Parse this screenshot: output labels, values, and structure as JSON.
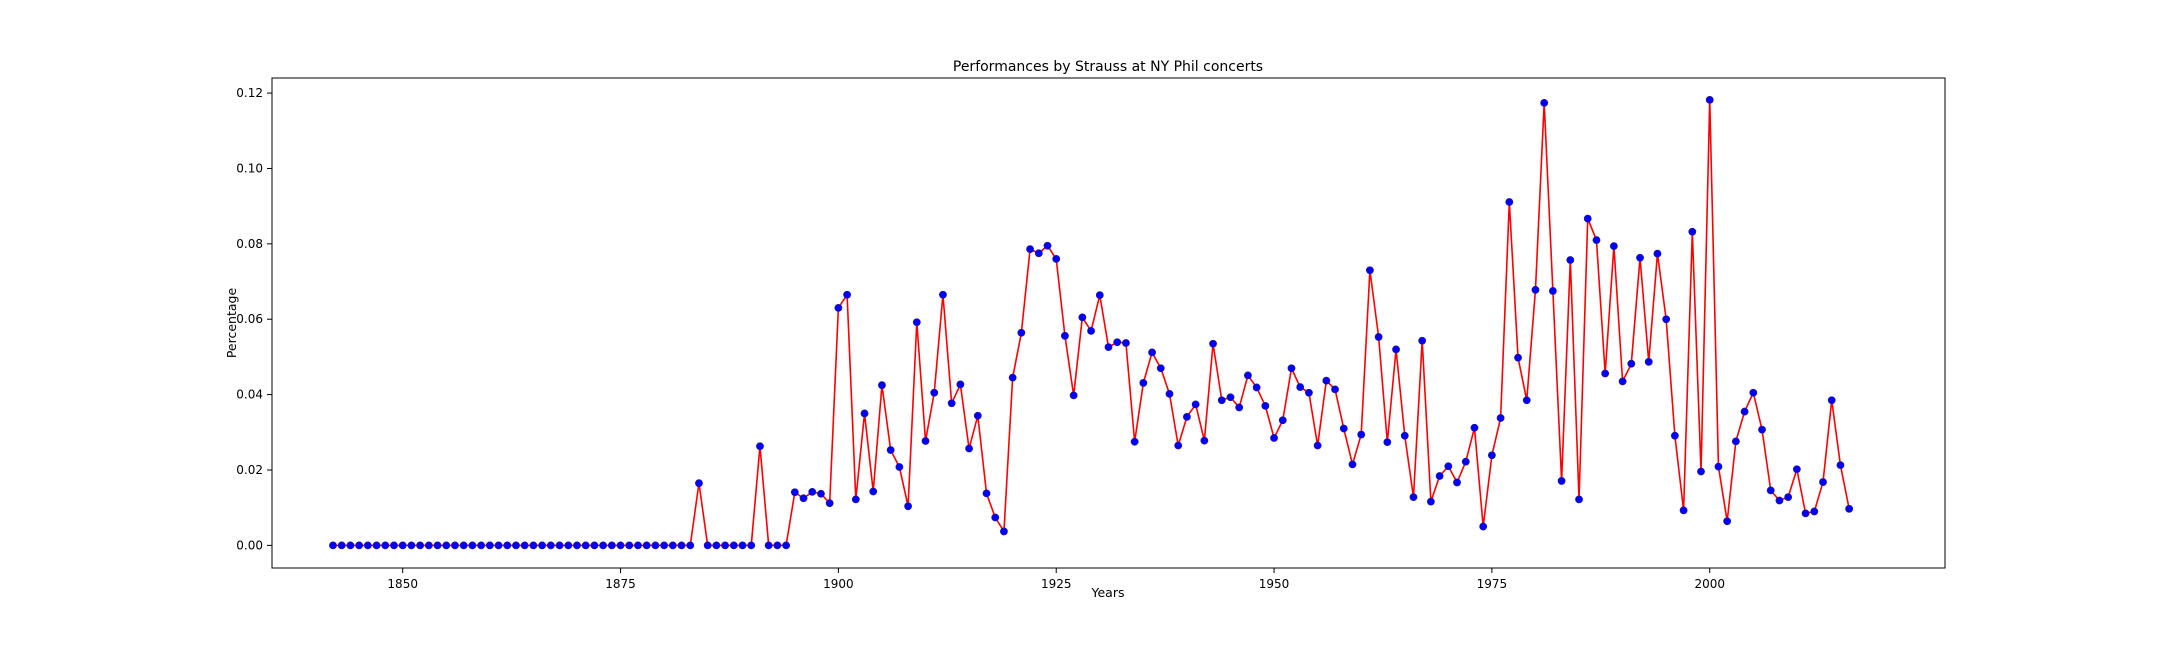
{
  "chart_data": {
    "type": "line",
    "title": "Performances by Strauss at NY Phil concerts",
    "xlabel": "Years",
    "ylabel": "Percentage",
    "xlim": [
      1835,
      2027
    ],
    "ylim": [
      -0.006,
      0.124
    ],
    "xticks": [
      1850,
      1875,
      1900,
      1925,
      1950,
      1975,
      2000
    ],
    "xtick_labels": [
      "1850",
      "1875",
      "1900",
      "1925",
      "1950",
      "1975",
      "2000"
    ],
    "yticks": [
      0.0,
      0.02,
      0.04,
      0.06,
      0.08,
      0.1,
      0.12
    ],
    "ytick_labels": [
      "0.00",
      "0.02",
      "0.04",
      "0.06",
      "0.08",
      "0.10",
      "0.12"
    ],
    "grid": false,
    "legend": "none",
    "line_color": "#ff0000",
    "marker_color": "#0000ff",
    "series": [
      {
        "x": [
          1842,
          1843,
          1844,
          1845,
          1846,
          1847,
          1848,
          1849,
          1850,
          1851,
          1852,
          1853,
          1854,
          1855,
          1856,
          1857,
          1858,
          1859,
          1860,
          1861,
          1862,
          1863,
          1864,
          1865,
          1866,
          1867,
          1868,
          1869,
          1870,
          1871,
          1872,
          1873,
          1874,
          1875,
          1876,
          1877,
          1878,
          1879,
          1880,
          1881,
          1882,
          1883,
          1884,
          1885,
          1886,
          1887,
          1888,
          1889,
          1890,
          1891,
          1892,
          1893,
          1894,
          1895,
          1896,
          1897,
          1898,
          1899,
          1900,
          1901,
          1902,
          1903,
          1904,
          1905,
          1906,
          1907,
          1908,
          1909,
          1910,
          1911,
          1912,
          1913,
          1914,
          1915,
          1916,
          1917,
          1918,
          1919,
          1920,
          1921,
          1922,
          1923,
          1924,
          1925,
          1926,
          1927,
          1928,
          1929,
          1930,
          1931,
          1932,
          1933,
          1934,
          1935,
          1936,
          1937,
          1938,
          1939,
          1940,
          1941,
          1942,
          1943,
          1944,
          1945,
          1946,
          1947,
          1948,
          1949,
          1950,
          1951,
          1952,
          1953,
          1954,
          1955,
          1956,
          1957,
          1958,
          1959,
          1960,
          1961,
          1962,
          1963,
          1964,
          1965,
          1966,
          1967,
          1968,
          1969,
          1970,
          1971,
          1972,
          1973,
          1974,
          1975,
          1976,
          1977,
          1978,
          1979,
          1980,
          1981,
          1982,
          1983,
          1984,
          1985,
          1986,
          1987,
          1988,
          1989,
          1990,
          1991,
          1992,
          1993,
          1994,
          1995,
          1996,
          1997,
          1998,
          1999,
          2000,
          2001,
          2002,
          2003,
          2004,
          2005,
          2006,
          2007,
          2008,
          2009,
          2010,
          2011,
          2012,
          2013,
          2014,
          2015,
          2016
        ],
        "y": [
          0,
          0,
          0,
          0,
          0,
          0,
          0,
          0,
          0,
          0,
          0,
          0,
          0,
          0,
          0,
          0,
          0,
          0,
          0,
          0,
          0,
          0,
          0,
          0,
          0,
          0,
          0,
          0,
          0,
          0,
          0,
          0,
          0,
          0,
          0,
          0,
          0,
          0,
          0,
          0,
          0,
          0,
          0.0165,
          0,
          0,
          0,
          0,
          0,
          0,
          0.0263,
          0,
          0,
          0,
          0.0141,
          0.0125,
          0.0142,
          0.0137,
          0.0112,
          0.063,
          0.0665,
          0.0122,
          0.035,
          0.0143,
          0.0425,
          0.0253,
          0.0208,
          0.0104,
          0.0592,
          0.0277,
          0.0405,
          0.0665,
          0.0377,
          0.0427,
          0.0257,
          0.0344,
          0.0138,
          0.0074,
          0.0037,
          0.0445,
          0.0564,
          0.0786,
          0.0775,
          0.0795,
          0.076,
          0.0556,
          0.0398,
          0.0605,
          0.0569,
          0.0664,
          0.0526,
          0.0539,
          0.0537,
          0.0275,
          0.0431,
          0.0512,
          0.047,
          0.0402,
          0.0265,
          0.0341,
          0.0374,
          0.0278,
          0.0535,
          0.0385,
          0.0393,
          0.0366,
          0.0451,
          0.0419,
          0.037,
          0.0285,
          0.0332,
          0.047,
          0.042,
          0.0405,
          0.0265,
          0.0437,
          0.0414,
          0.031,
          0.0215,
          0.0294,
          0.073,
          0.0553,
          0.0274,
          0.052,
          0.0291,
          0.0128,
          0.0543,
          0.0116,
          0.0184,
          0.021,
          0.0167,
          0.0222,
          0.0312,
          0.005,
          0.0239,
          0.0338,
          0.0911,
          0.0498,
          0.0385,
          0.0678,
          0.1174,
          0.0675,
          0.0171,
          0.0757,
          0.0122,
          0.0867,
          0.081,
          0.0456,
          0.0794,
          0.0435,
          0.0482,
          0.0763,
          0.0487,
          0.0774,
          0.06,
          0.0291,
          0.0093,
          0.0832,
          0.0196,
          0.1182,
          0.0209,
          0.0064,
          0.0276,
          0.0355,
          0.0405,
          0.0307,
          0.0146,
          0.0119,
          0.0128,
          0.0202,
          0.0085,
          0.009,
          0.0168,
          0.0385,
          0.0213,
          0.0097
        ]
      }
    ]
  }
}
